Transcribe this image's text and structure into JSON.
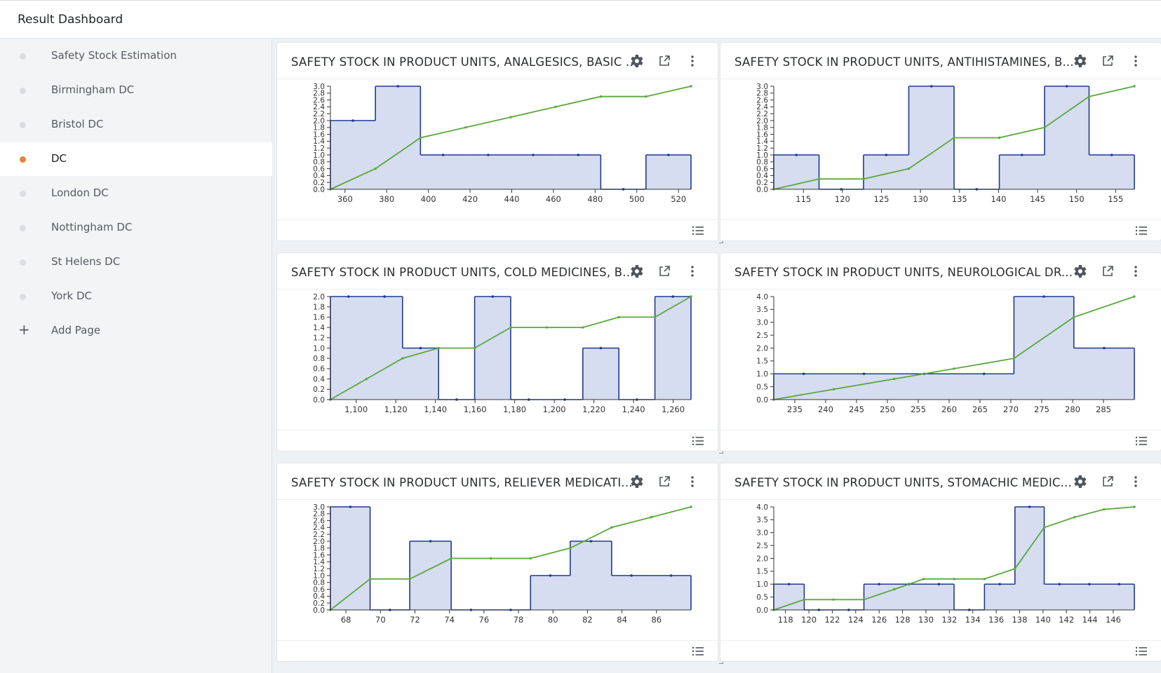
{
  "header": {
    "title": "Result Dashboard"
  },
  "sidebar": {
    "items": [
      {
        "label": "Safety Stock Estimation",
        "active": false
      },
      {
        "label": "Birmingham DC",
        "active": false
      },
      {
        "label": "Bristol DC",
        "active": false
      },
      {
        "label": "DC",
        "active": true
      },
      {
        "label": "London DC",
        "active": false
      },
      {
        "label": "Nottingham DC",
        "active": false
      },
      {
        "label": "St Helens DC",
        "active": false
      },
      {
        "label": "York DC",
        "active": false
      }
    ],
    "add_page_label": "Add Page"
  },
  "colors": {
    "bar_fill": "#d6ddf0",
    "bar_line": "#1f3a93",
    "cdf_line": "#5aa73c",
    "accent": "#e8833a"
  },
  "panels": [
    {
      "title": "SAFETY STOCK IN PRODUCT UNITS, ANALGESICS, BASIC ...",
      "chart_data": {
        "type": "area",
        "xlim": [
          353,
          526
        ],
        "ylim": [
          0,
          3
        ],
        "xticks": [
          360,
          380,
          400,
          420,
          440,
          460,
          480,
          500,
          520
        ],
        "xtick_labels": [
          "360",
          "380",
          "400",
          "420",
          "440",
          "460",
          "480",
          "500",
          "520"
        ],
        "yticks": [
          0,
          0.2,
          0.4,
          0.6,
          0.8,
          1.0,
          1.2,
          1.4,
          1.6,
          1.8,
          2.0,
          2.2,
          2.4,
          2.6,
          2.8,
          3.0
        ],
        "ytick_labels": [
          "0.0",
          "0.2",
          "0.4",
          "0.6",
          "0.8",
          "1.0",
          "1.2",
          "1.4",
          "1.6",
          "1.8",
          "2.0",
          "2.2",
          "2.4",
          "2.6",
          "2.8",
          "3.0"
        ],
        "bins": [
          {
            "x0": 353,
            "x1": 374.6,
            "y": 2
          },
          {
            "x0": 374.6,
            "x1": 396.2,
            "y": 3
          },
          {
            "x0": 396.2,
            "x1": 417.9,
            "y": 1
          },
          {
            "x0": 417.9,
            "x1": 439.5,
            "y": 1
          },
          {
            "x0": 439.5,
            "x1": 461.1,
            "y": 1
          },
          {
            "x0": 461.1,
            "x1": 482.7,
            "y": 1
          },
          {
            "x0": 482.7,
            "x1": 504.4,
            "y": 0
          },
          {
            "x0": 504.4,
            "x1": 526,
            "y": 1
          }
        ],
        "cumulative_line": {
          "x": [
            353,
            374.6,
            396.2,
            417.9,
            439.5,
            461.1,
            482.7,
            504.4,
            526
          ],
          "y": [
            0,
            0.6,
            1.5,
            1.8,
            2.1,
            2.4,
            2.7,
            2.7,
            3.0
          ]
        }
      }
    },
    {
      "title": "SAFETY STOCK IN PRODUCT UNITS, ANTIHISTAMINES, B...",
      "chart_data": {
        "type": "area",
        "xlim": [
          111.2,
          157.4
        ],
        "ylim": [
          0,
          3
        ],
        "xticks": [
          115,
          120,
          125,
          130,
          135,
          140,
          145,
          150,
          155
        ],
        "xtick_labels": [
          "115",
          "120",
          "125",
          "130",
          "135",
          "140",
          "145",
          "150",
          "155"
        ],
        "yticks": [
          0,
          0.2,
          0.4,
          0.6,
          0.8,
          1.0,
          1.2,
          1.4,
          1.6,
          1.8,
          2.0,
          2.2,
          2.4,
          2.6,
          2.8,
          3.0
        ],
        "ytick_labels": [
          "0.0",
          "0.2",
          "0.4",
          "0.6",
          "0.8",
          "1.0",
          "1.2",
          "1.4",
          "1.6",
          "1.8",
          "2.0",
          "2.2",
          "2.4",
          "2.6",
          "2.8",
          "3.0"
        ],
        "bins": [
          {
            "x0": 111.2,
            "x1": 117,
            "y": 1
          },
          {
            "x0": 117,
            "x1": 122.7,
            "y": 0
          },
          {
            "x0": 122.7,
            "x1": 128.5,
            "y": 1
          },
          {
            "x0": 128.5,
            "x1": 134.3,
            "y": 3
          },
          {
            "x0": 134.3,
            "x1": 140.1,
            "y": 0
          },
          {
            "x0": 140.1,
            "x1": 145.9,
            "y": 1
          },
          {
            "x0": 145.9,
            "x1": 151.6,
            "y": 3
          },
          {
            "x0": 151.6,
            "x1": 157.4,
            "y": 1
          }
        ],
        "cumulative_line": {
          "x": [
            111.2,
            117,
            122.7,
            128.5,
            134.3,
            140.1,
            145.9,
            151.6,
            157.4
          ],
          "y": [
            0,
            0.3,
            0.3,
            0.6,
            1.5,
            1.5,
            1.8,
            2.7,
            3.0
          ]
        }
      }
    },
    {
      "title": "SAFETY STOCK IN PRODUCT UNITS, COLD MEDICINES, B...",
      "chart_data": {
        "type": "area",
        "xlim": [
          1087,
          1269
        ],
        "ylim": [
          0,
          2
        ],
        "xticks": [
          1100,
          1120,
          1140,
          1160,
          1180,
          1200,
          1220,
          1240,
          1260
        ],
        "xtick_labels": [
          "1,100",
          "1,120",
          "1,140",
          "1,160",
          "1,180",
          "1,200",
          "1,220",
          "1,240",
          "1,260"
        ],
        "yticks": [
          0,
          0.2,
          0.4,
          0.6,
          0.8,
          1.0,
          1.2,
          1.4,
          1.6,
          1.8,
          2.0
        ],
        "ytick_labels": [
          "0.0",
          "0.2",
          "0.4",
          "0.6",
          "0.8",
          "1.0",
          "1.2",
          "1.4",
          "1.6",
          "1.8",
          "2.0"
        ],
        "bins": [
          {
            "x0": 1087,
            "x1": 1105.2,
            "y": 2
          },
          {
            "x0": 1105.2,
            "x1": 1123.4,
            "y": 2
          },
          {
            "x0": 1123.4,
            "x1": 1141.6,
            "y": 1
          },
          {
            "x0": 1141.6,
            "x1": 1159.8,
            "y": 0
          },
          {
            "x0": 1159.8,
            "x1": 1178,
            "y": 2
          },
          {
            "x0": 1178,
            "x1": 1196.2,
            "y": 0
          },
          {
            "x0": 1196.2,
            "x1": 1214.4,
            "y": 0
          },
          {
            "x0": 1214.4,
            "x1": 1232.6,
            "y": 1
          },
          {
            "x0": 1232.6,
            "x1": 1250.8,
            "y": 0
          },
          {
            "x0": 1250.8,
            "x1": 1269,
            "y": 2
          }
        ],
        "cumulative_line": {
          "x": [
            1087,
            1105.2,
            1123.4,
            1141.6,
            1159.8,
            1178,
            1196.2,
            1214.4,
            1232.6,
            1250.8,
            1269
          ],
          "y": [
            0,
            0.4,
            0.8,
            1.0,
            1.0,
            1.4,
            1.4,
            1.4,
            1.6,
            1.6,
            2.0
          ]
        }
      }
    },
    {
      "title": "SAFETY STOCK IN PRODUCT UNITS, NEUROLOGICAL DR...",
      "chart_data": {
        "type": "area",
        "xlim": [
          231.6,
          290.0
        ],
        "ylim": [
          0,
          4
        ],
        "xticks": [
          235,
          240,
          245,
          250,
          255,
          260,
          265,
          270,
          275,
          280,
          285
        ],
        "xtick_labels": [
          "235",
          "240",
          "245",
          "250",
          "255",
          "260",
          "265",
          "270",
          "275",
          "280",
          "285"
        ],
        "yticks": [
          0,
          0.5,
          1.0,
          1.5,
          2.0,
          2.5,
          3.0,
          3.5,
          4.0
        ],
        "ytick_labels": [
          "0.0",
          "0.5",
          "1.0",
          "1.5",
          "2.0",
          "2.5",
          "3.0",
          "3.5",
          "4.0"
        ],
        "bins": [
          {
            "x0": 231.6,
            "x1": 241.3,
            "y": 1
          },
          {
            "x0": 241.3,
            "x1": 251.1,
            "y": 1
          },
          {
            "x0": 251.1,
            "x1": 260.8,
            "y": 1
          },
          {
            "x0": 260.8,
            "x1": 270.5,
            "y": 1
          },
          {
            "x0": 270.5,
            "x1": 280.2,
            "y": 4
          },
          {
            "x0": 280.2,
            "x1": 290.0,
            "y": 2
          }
        ],
        "cumulative_line": {
          "x": [
            231.6,
            241.3,
            251.1,
            260.8,
            270.5,
            280.2,
            290.0
          ],
          "y": [
            0,
            0.4,
            0.8,
            1.2,
            1.6,
            3.2,
            4.0
          ]
        }
      }
    },
    {
      "title": "SAFETY STOCK IN PRODUCT UNITS, RELIEVER MEDICATI...",
      "chart_data": {
        "type": "area",
        "xlim": [
          67.1,
          88.0
        ],
        "ylim": [
          0,
          3
        ],
        "xticks": [
          68,
          70,
          72,
          74,
          76,
          78,
          80,
          82,
          84,
          86
        ],
        "xtick_labels": [
          "68",
          "70",
          "72",
          "74",
          "76",
          "78",
          "80",
          "82",
          "84",
          "86"
        ],
        "yticks": [
          0,
          0.2,
          0.4,
          0.6,
          0.8,
          1.0,
          1.2,
          1.4,
          1.6,
          1.8,
          2.0,
          2.2,
          2.4,
          2.6,
          2.8,
          3.0
        ],
        "ytick_labels": [
          "0.0",
          "0.2",
          "0.4",
          "0.6",
          "0.8",
          "1.0",
          "1.2",
          "1.4",
          "1.6",
          "1.8",
          "2.0",
          "2.2",
          "2.4",
          "2.6",
          "2.8",
          "3.0"
        ],
        "bins": [
          {
            "x0": 67.1,
            "x1": 69.4,
            "y": 3
          },
          {
            "x0": 69.4,
            "x1": 71.7,
            "y": 0
          },
          {
            "x0": 71.7,
            "x1": 74.1,
            "y": 2
          },
          {
            "x0": 74.1,
            "x1": 76.4,
            "y": 0
          },
          {
            "x0": 76.4,
            "x1": 78.7,
            "y": 0
          },
          {
            "x0": 78.7,
            "x1": 81.0,
            "y": 1
          },
          {
            "x0": 81.0,
            "x1": 83.4,
            "y": 2
          },
          {
            "x0": 83.4,
            "x1": 85.7,
            "y": 1
          },
          {
            "x0": 85.7,
            "x1": 88.0,
            "y": 1
          }
        ],
        "cumulative_line": {
          "x": [
            67.1,
            69.4,
            71.7,
            74.1,
            76.4,
            78.7,
            81.0,
            83.4,
            85.7,
            88.0
          ],
          "y": [
            0,
            0.9,
            0.9,
            1.5,
            1.5,
            1.5,
            1.8,
            2.4,
            2.7,
            3.0
          ]
        }
      }
    },
    {
      "title": "SAFETY STOCK IN PRODUCT UNITS, STOMACHIC MEDIC...",
      "chart_data": {
        "type": "area",
        "xlim": [
          117.0,
          147.8
        ],
        "ylim": [
          0,
          4
        ],
        "xticks": [
          118,
          120,
          122,
          124,
          126,
          128,
          130,
          132,
          134,
          136,
          138,
          140,
          142,
          144,
          146
        ],
        "xtick_labels": [
          "118",
          "120",
          "122",
          "124",
          "126",
          "128",
          "130",
          "132",
          "134",
          "136",
          "138",
          "140",
          "142",
          "144",
          "146"
        ],
        "yticks": [
          0,
          0.5,
          1.0,
          1.5,
          2.0,
          2.5,
          3.0,
          3.5,
          4.0
        ],
        "ytick_labels": [
          "0.0",
          "0.5",
          "1.0",
          "1.5",
          "2.0",
          "2.5",
          "3.0",
          "3.5",
          "4.0"
        ],
        "bins": [
          {
            "x0": 117.0,
            "x1": 119.6,
            "y": 1
          },
          {
            "x0": 119.6,
            "x1": 122.1,
            "y": 0
          },
          {
            "x0": 122.1,
            "x1": 124.7,
            "y": 0
          },
          {
            "x0": 124.7,
            "x1": 127.3,
            "y": 1
          },
          {
            "x0": 127.3,
            "x1": 129.8,
            "y": 1
          },
          {
            "x0": 129.8,
            "x1": 132.4,
            "y": 1
          },
          {
            "x0": 132.4,
            "x1": 135.0,
            "y": 0
          },
          {
            "x0": 135.0,
            "x1": 137.6,
            "y": 1
          },
          {
            "x0": 137.6,
            "x1": 140.1,
            "y": 4
          },
          {
            "x0": 140.1,
            "x1": 142.7,
            "y": 1
          },
          {
            "x0": 142.7,
            "x1": 145.2,
            "y": 1
          },
          {
            "x0": 145.2,
            "x1": 147.8,
            "y": 1
          }
        ],
        "cumulative_line": {
          "x": [
            117.0,
            119.6,
            122.1,
            124.7,
            127.3,
            129.8,
            132.4,
            135.0,
            137.6,
            140.1,
            142.7,
            145.2,
            147.8
          ],
          "y": [
            0,
            0.4,
            0.4,
            0.4,
            0.8,
            1.2,
            1.2,
            1.2,
            1.6,
            3.2,
            3.6,
            3.9,
            4.0
          ]
        }
      }
    }
  ]
}
